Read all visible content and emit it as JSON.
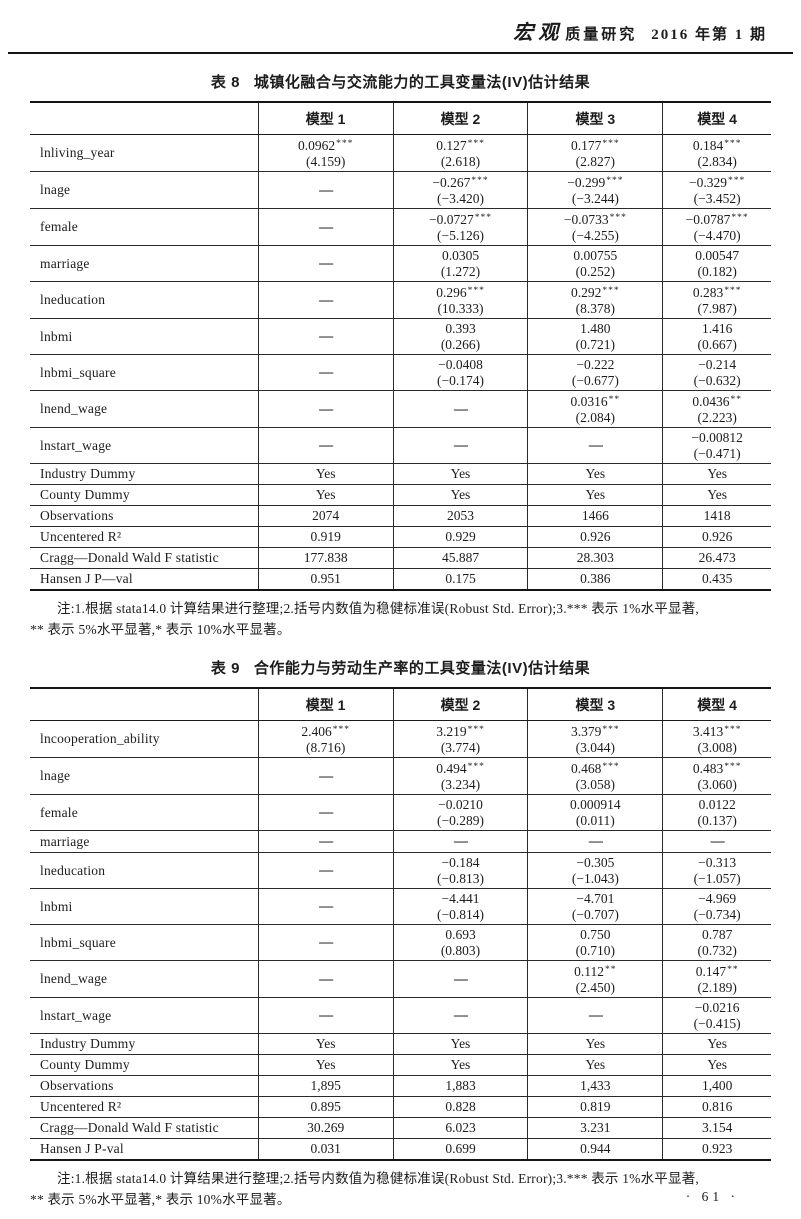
{
  "header": {
    "brand": "宏观",
    "title": "质量研究",
    "issue": "2016 年第 1 期"
  },
  "tables": [
    {
      "title_label": "表 8",
      "title_text": "城镇化融合与交流能力的工具变量法(IV)估计结果",
      "columns": [
        "",
        "模型 1",
        "模型 2",
        "模型 3",
        "模型 4"
      ],
      "rows": [
        {
          "type": "coef",
          "label": "lnliving_year",
          "cells": [
            {
              "v": "0.0962",
              "s": "***",
              "t": "(4.159)"
            },
            {
              "v": "0.127",
              "s": "***",
              "t": "(2.618)"
            },
            {
              "v": "0.177",
              "s": "***",
              "t": "(2.827)"
            },
            {
              "v": "0.184",
              "s": "***",
              "t": "(2.834)"
            }
          ]
        },
        {
          "type": "coef",
          "label": "lnage",
          "cells": [
            null,
            {
              "v": "−0.267",
              "s": "***",
              "t": "(−3.420)"
            },
            {
              "v": "−0.299",
              "s": "***",
              "t": "(−3.244)"
            },
            {
              "v": "−0.329",
              "s": "***",
              "t": "(−3.452)"
            }
          ]
        },
        {
          "type": "coef",
          "label": "female",
          "cells": [
            null,
            {
              "v": "−0.0727",
              "s": "***",
              "t": "(−5.126)"
            },
            {
              "v": "−0.0733",
              "s": "***",
              "t": "(−4.255)"
            },
            {
              "v": "−0.0787",
              "s": "***",
              "t": "(−4.470)"
            }
          ]
        },
        {
          "type": "coef",
          "label": "marriage",
          "cells": [
            null,
            {
              "v": "0.0305",
              "t": "(1.272)"
            },
            {
              "v": "0.00755",
              "t": "(0.252)"
            },
            {
              "v": "0.00547",
              "t": "(0.182)"
            }
          ]
        },
        {
          "type": "coef",
          "label": "lneducation",
          "cells": [
            null,
            {
              "v": "0.296",
              "s": "***",
              "t": "(10.333)"
            },
            {
              "v": "0.292",
              "s": "***",
              "t": "(8.378)"
            },
            {
              "v": "0.283",
              "s": "***",
              "t": "(7.987)"
            }
          ]
        },
        {
          "type": "coef",
          "label": "lnbmi",
          "cells": [
            null,
            {
              "v": "0.393",
              "t": "(0.266)"
            },
            {
              "v": "1.480",
              "t": "(0.721)"
            },
            {
              "v": "1.416",
              "t": "(0.667)"
            }
          ]
        },
        {
          "type": "coef",
          "label": "lnbmi_square",
          "cells": [
            null,
            {
              "v": "−0.0408",
              "t": "(−0.174)"
            },
            {
              "v": "−0.222",
              "t": "(−0.677)"
            },
            {
              "v": "−0.214",
              "t": "(−0.632)"
            }
          ]
        },
        {
          "type": "coef",
          "label": "lnend_wage",
          "cells": [
            null,
            null,
            {
              "v": "0.0316",
              "s": "**",
              "t": "(2.084)"
            },
            {
              "v": "0.0436",
              "s": "**",
              "t": "(2.223)"
            }
          ]
        },
        {
          "type": "coef",
          "label": "lnstart_wage",
          "cells": [
            null,
            null,
            null,
            {
              "v": "−0.00812",
              "t": "(−0.471)"
            }
          ]
        },
        {
          "type": "stat",
          "label": "Industry Dummy",
          "values": [
            "Yes",
            "Yes",
            "Yes",
            "Yes"
          ]
        },
        {
          "type": "stat",
          "label": "County Dummy",
          "values": [
            "Yes",
            "Yes",
            "Yes",
            "Yes"
          ]
        },
        {
          "type": "stat",
          "label": "Observations",
          "values": [
            "2074",
            "2053",
            "1466",
            "1418"
          ]
        },
        {
          "type": "stat",
          "label": "Uncentered R²",
          "values": [
            "0.919",
            "0.929",
            "0.926",
            "0.926"
          ]
        },
        {
          "type": "stat",
          "label": "Cragg—Donald Wald F statistic",
          "values": [
            "177.838",
            "45.887",
            "28.303",
            "26.473"
          ]
        },
        {
          "type": "stat",
          "label": "Hansen J P—val",
          "values": [
            "0.951",
            "0.175",
            "0.386",
            "0.435"
          ]
        }
      ],
      "note_line1": "注:1.根据 stata14.0 计算结果进行整理;2.括号内数值为稳健标准误(Robust Std. Error);3.*** 表示 1%水平显著,",
      "note_line2": "** 表示 5%水平显著,* 表示 10%水平显著。"
    },
    {
      "title_label": "表 9",
      "title_text": "合作能力与劳动生产率的工具变量法(IV)估计结果",
      "columns": [
        "",
        "模型 1",
        "模型 2",
        "模型 3",
        "模型 4"
      ],
      "rows": [
        {
          "type": "coef",
          "label": "lncooperation_ability",
          "cells": [
            {
              "v": "2.406",
              "s": "***",
              "t": "(8.716)"
            },
            {
              "v": "3.219",
              "s": "***",
              "t": "(3.774)"
            },
            {
              "v": "3.379",
              "s": "***",
              "t": "(3.044)"
            },
            {
              "v": "3.413",
              "s": "***",
              "t": "(3.008)"
            }
          ]
        },
        {
          "type": "coef",
          "label": "lnage",
          "cells": [
            null,
            {
              "v": "0.494",
              "s": "***",
              "t": "(3.234)"
            },
            {
              "v": "0.468",
              "s": "***",
              "t": "(3.058)"
            },
            {
              "v": "0.483",
              "s": "***",
              "t": "(3.060)"
            }
          ]
        },
        {
          "type": "coef",
          "label": "female",
          "cells": [
            null,
            {
              "v": "−0.0210",
              "t": "(−0.289)"
            },
            {
              "v": "0.000914",
              "t": "(0.011)"
            },
            {
              "v": "0.0122",
              "t": "(0.137)"
            }
          ]
        },
        {
          "type": "coef",
          "label": "marriage",
          "cells": [
            null,
            null,
            null,
            null
          ]
        },
        {
          "type": "coef",
          "label": "lneducation",
          "cells": [
            null,
            {
              "v": "−0.184",
              "t": "(−0.813)"
            },
            {
              "v": "−0.305",
              "t": "(−1.043)"
            },
            {
              "v": "−0.313",
              "t": "(−1.057)"
            }
          ]
        },
        {
          "type": "coef",
          "label": "lnbmi",
          "cells": [
            null,
            {
              "v": "−4.441",
              "t": "(−0.814)"
            },
            {
              "v": "−4.701",
              "t": "(−0.707)"
            },
            {
              "v": "−4.969",
              "t": "(−0.734)"
            }
          ]
        },
        {
          "type": "coef",
          "label": "lnbmi_square",
          "cells": [
            null,
            {
              "v": "0.693",
              "t": "(0.803)"
            },
            {
              "v": "0.750",
              "t": "(0.710)"
            },
            {
              "v": "0.787",
              "t": "(0.732)"
            }
          ]
        },
        {
          "type": "coef",
          "label": "lnend_wage",
          "cells": [
            null,
            null,
            {
              "v": "0.112",
              "s": "**",
              "t": "(2.450)"
            },
            {
              "v": "0.147",
              "s": "**",
              "t": "(2.189)"
            }
          ]
        },
        {
          "type": "coef",
          "label": "lnstart_wage",
          "cells": [
            null,
            null,
            null,
            {
              "v": "−0.0216",
              "t": "(−0.415)"
            }
          ]
        },
        {
          "type": "stat",
          "label": "Industry Dummy",
          "values": [
            "Yes",
            "Yes",
            "Yes",
            "Yes"
          ]
        },
        {
          "type": "stat",
          "label": "County Dummy",
          "values": [
            "Yes",
            "Yes",
            "Yes",
            "Yes"
          ]
        },
        {
          "type": "stat",
          "label": "Observations",
          "values": [
            "1,895",
            "1,883",
            "1,433",
            "1,400"
          ]
        },
        {
          "type": "stat",
          "label": "Uncentered R²",
          "values": [
            "0.895",
            "0.828",
            "0.819",
            "0.816"
          ]
        },
        {
          "type": "stat",
          "label": "Cragg—Donald Wald F statistic",
          "values": [
            "30.269",
            "6.023",
            "3.231",
            "3.154"
          ]
        },
        {
          "type": "stat",
          "label": "Hansen J P-val",
          "values": [
            "0.031",
            "0.699",
            "0.944",
            "0.923"
          ]
        }
      ],
      "note_line1": "注:1.根据 stata14.0 计算结果进行整理;2.括号内数值为稳健标准误(Robust Std. Error);3.*** 表示 1%水平显著,",
      "note_line2": "** 表示 5%水平显著,* 表示 10%水平显著。"
    }
  ],
  "footer": {
    "page_number": "· 61 ·"
  }
}
